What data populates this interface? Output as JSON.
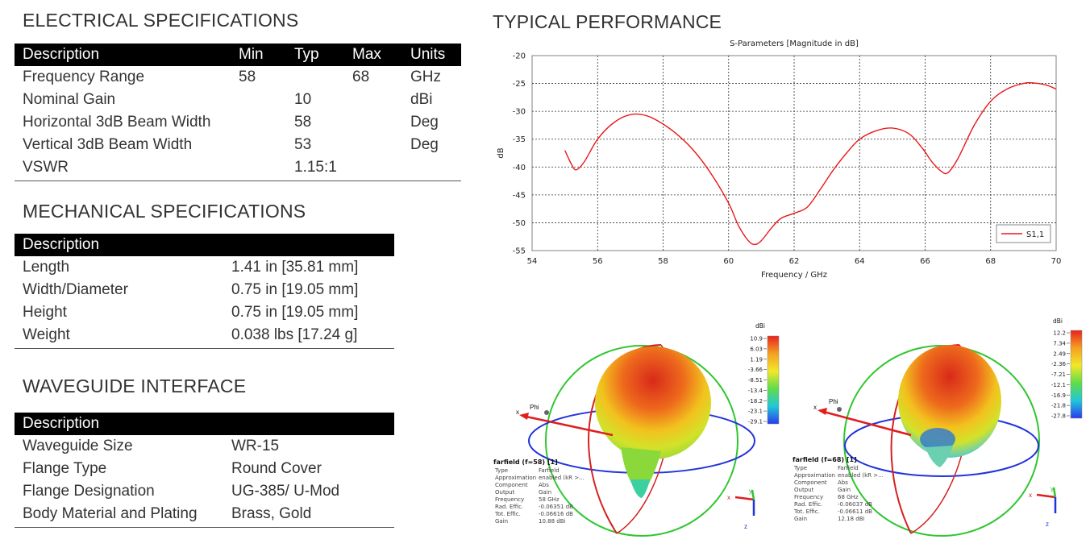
{
  "electrical": {
    "title": "ELECTRICAL SPECIFICATIONS",
    "headers": [
      "Description",
      "Min",
      "Typ",
      "Max",
      "Units"
    ],
    "rows": [
      [
        "Frequency Range",
        "58",
        "",
        "68",
        "GHz"
      ],
      [
        "Nominal Gain",
        "",
        "10",
        "",
        "dBi"
      ],
      [
        "Horizontal 3dB Beam Width",
        "",
        "58",
        "",
        "Deg"
      ],
      [
        "Vertical 3dB Beam Width",
        "",
        "53",
        "",
        "Deg"
      ],
      [
        "VSWR",
        "",
        "1.15:1",
        "",
        ""
      ]
    ]
  },
  "mechanical": {
    "title": "MECHANICAL SPECIFICATIONS",
    "header": "Description",
    "rows": [
      [
        "Length",
        "1.41 in [35.81 mm]"
      ],
      [
        "Width/Diameter",
        "0.75 in [19.05 mm]"
      ],
      [
        "Height",
        "0.75 in [19.05 mm]"
      ],
      [
        "Weight",
        "0.038 lbs [17.24 g]"
      ]
    ]
  },
  "waveguide": {
    "title": "WAVEGUIDE INTERFACE",
    "header": "Description",
    "rows": [
      [
        "Waveguide Size",
        "WR-15"
      ],
      [
        "Flange Type",
        "Round Cover"
      ],
      [
        "Flange Designation",
        "UG-385/ U-Mod"
      ],
      [
        "Body Material and Plating",
        "Brass, Gold"
      ]
    ]
  },
  "performance": {
    "title": "TYPICAL PERFORMANCE"
  },
  "chart_data": {
    "type": "line",
    "title": "S-Parameters [Magnitude in dB]",
    "xlabel": "Frequency / GHz",
    "ylabel": "dB",
    "xlim": [
      54,
      70
    ],
    "ylim": [
      -55,
      -20
    ],
    "xticks": [
      "54",
      "56",
      "58",
      "60",
      "62",
      "64",
      "66",
      "68",
      "70"
    ],
    "yticks": [
      "-20",
      "-25",
      "-30",
      "-35",
      "-40",
      "-45",
      "-50",
      "-55"
    ],
    "grid": true,
    "legend_position": "bottom-right",
    "series": [
      {
        "name": "S1,1",
        "color": "#e8191c",
        "x": [
          55.0,
          55.2,
          55.35,
          55.6,
          56.0,
          56.5,
          57.0,
          57.5,
          58.0,
          58.5,
          59.0,
          59.5,
          60.0,
          60.3,
          60.6,
          60.8,
          61.0,
          61.3,
          61.6,
          62.0,
          62.4,
          62.8,
          63.2,
          63.6,
          64.0,
          64.5,
          65.0,
          65.5,
          65.9,
          66.2,
          66.5,
          66.7,
          67.0,
          67.5,
          68.0,
          68.5,
          69.0,
          69.3,
          69.7,
          70.0
        ],
        "y": [
          -37.0,
          -39.5,
          -40.5,
          -39.0,
          -35.0,
          -32.0,
          -30.6,
          -30.8,
          -32.3,
          -34.5,
          -37.5,
          -41.5,
          -46.5,
          -50.5,
          -53.2,
          -53.9,
          -53.2,
          -51.0,
          -49.2,
          -48.3,
          -47.2,
          -44.0,
          -40.5,
          -37.5,
          -35.0,
          -33.5,
          -33.0,
          -34.0,
          -36.5,
          -39.0,
          -40.8,
          -41.0,
          -38.5,
          -32.5,
          -28.2,
          -26.0,
          -25.0,
          -24.9,
          -25.3,
          -26.0
        ]
      }
    ]
  },
  "farfield_left": {
    "title": "farfield (f=58) [1]",
    "unit_label": "dBi",
    "scale": [
      "10.9",
      "6.03",
      "1.19",
      "-3.66",
      "-8.51",
      "-13.4",
      "-18.2",
      "-23.1",
      "-29.1"
    ],
    "props": [
      [
        "Type",
        "Farfield"
      ],
      [
        "Approximation",
        "enabled (kR >..."
      ],
      [
        "Component",
        "Abs"
      ],
      [
        "Output",
        "Gain"
      ],
      [
        "Frequency",
        "58 GHz"
      ],
      [
        "Rad. Effic.",
        "-0.06351 dB"
      ],
      [
        "Tot. Effic.",
        "-0.06616 dB"
      ],
      [
        "Gain",
        "10.88 dBi"
      ]
    ],
    "axis_labels": {
      "phi": "Phi",
      "x": "x",
      "y": "y",
      "z": "z"
    }
  },
  "farfield_right": {
    "title": "farfield (f=68) [1]",
    "unit_label": "dBi",
    "scale": [
      "12.2",
      "7.34",
      "2.49",
      "-2.36",
      "-7.21",
      "-12.1",
      "-16.9",
      "-21.8",
      "-27.8"
    ],
    "props": [
      [
        "Type",
        "Farfield"
      ],
      [
        "Approximation",
        "enabled (kR >..."
      ],
      [
        "Component",
        "Abs"
      ],
      [
        "Output",
        "Gain"
      ],
      [
        "Frequency",
        "68 GHz"
      ],
      [
        "Rad. Effic.",
        "-0.06037 dB"
      ],
      [
        "Tot. Effic.",
        "-0.06611 dB"
      ],
      [
        "Gain",
        "12.18 dBi"
      ]
    ],
    "axis_labels": {
      "phi": "Phi",
      "x": "x",
      "y": "y",
      "z": "z"
    }
  }
}
